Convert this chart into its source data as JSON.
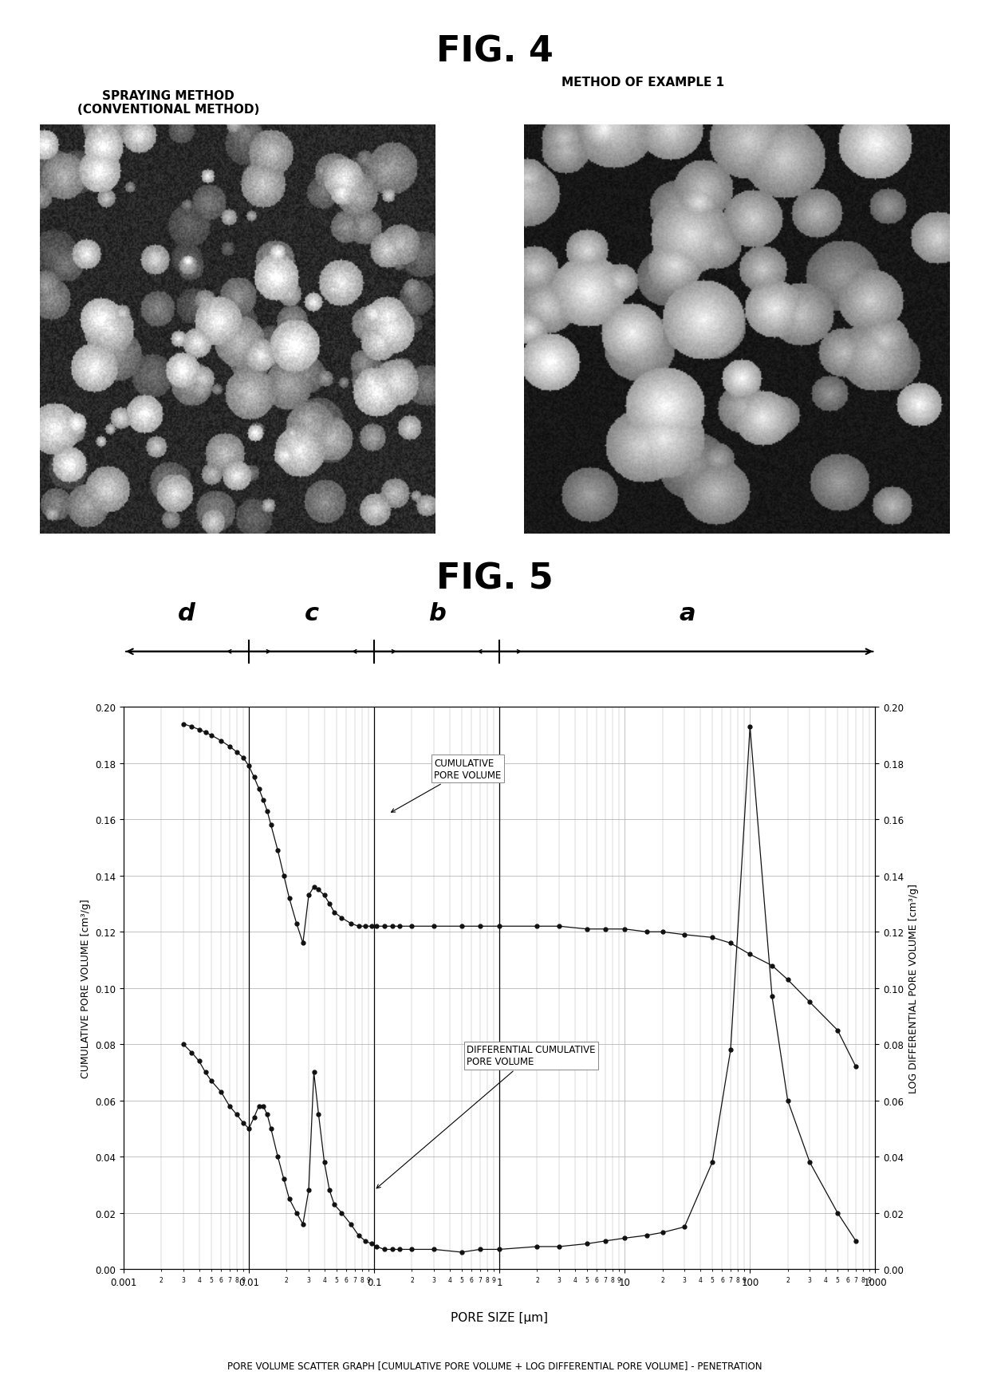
{
  "fig4_title": "FIG. 4",
  "fig5_title": "FIG. 5",
  "label_left": "SPRAYING METHOD\n(CONVENTIONAL METHOD)",
  "label_right": "METHOD OF EXAMPLE 1",
  "xlabel": "PORE SIZE [μm]",
  "ylabel_left": "CUMULATIVE PORE VOLUME [cm³/g]",
  "ylabel_right": "LOG DIFFERENTIAL PORE VOLUME [cm³/g]",
  "bottom_label": "PORE VOLUME SCATTER GRAPH [CUMULATIVE PORE VOLUME + LOG DIFFERENTIAL PORE VOLUME] - PENETRATION",
  "region_labels": [
    "d",
    "c",
    "b",
    "a"
  ],
  "ylim": [
    0.0,
    0.2
  ],
  "yticks": [
    0.0,
    0.02,
    0.04,
    0.06,
    0.08,
    0.1,
    0.12,
    0.14,
    0.16,
    0.18,
    0.2
  ],
  "cumulative_x": [
    0.003,
    0.0035,
    0.004,
    0.0045,
    0.005,
    0.006,
    0.007,
    0.008,
    0.009,
    0.01,
    0.011,
    0.012,
    0.013,
    0.014,
    0.015,
    0.017,
    0.019,
    0.021,
    0.024,
    0.027,
    0.03,
    0.033,
    0.036,
    0.04,
    0.044,
    0.048,
    0.055,
    0.065,
    0.075,
    0.085,
    0.095,
    0.105,
    0.12,
    0.14,
    0.16,
    0.2,
    0.3,
    0.5,
    0.7,
    1.0,
    2.0,
    3.0,
    5.0,
    7.0,
    10.0,
    15.0,
    20.0,
    30.0,
    50.0,
    70.0,
    100.0,
    150.0,
    200.0,
    300.0,
    500.0,
    700.0
  ],
  "cumulative_y": [
    0.194,
    0.193,
    0.192,
    0.191,
    0.19,
    0.188,
    0.186,
    0.184,
    0.182,
    0.179,
    0.175,
    0.171,
    0.167,
    0.163,
    0.158,
    0.149,
    0.14,
    0.132,
    0.123,
    0.116,
    0.133,
    0.136,
    0.135,
    0.133,
    0.13,
    0.127,
    0.125,
    0.123,
    0.122,
    0.122,
    0.122,
    0.122,
    0.122,
    0.122,
    0.122,
    0.122,
    0.122,
    0.122,
    0.122,
    0.122,
    0.122,
    0.122,
    0.121,
    0.121,
    0.121,
    0.12,
    0.12,
    0.119,
    0.118,
    0.116,
    0.112,
    0.108,
    0.103,
    0.095,
    0.085,
    0.072
  ],
  "diff_x": [
    0.003,
    0.0035,
    0.004,
    0.0045,
    0.005,
    0.006,
    0.007,
    0.008,
    0.009,
    0.01,
    0.011,
    0.012,
    0.013,
    0.014,
    0.015,
    0.017,
    0.019,
    0.021,
    0.024,
    0.027,
    0.03,
    0.033,
    0.036,
    0.04,
    0.044,
    0.048,
    0.055,
    0.065,
    0.075,
    0.085,
    0.095,
    0.105,
    0.12,
    0.14,
    0.16,
    0.2,
    0.3,
    0.5,
    0.7,
    1.0,
    2.0,
    3.0,
    5.0,
    7.0,
    10.0,
    15.0,
    20.0,
    30.0,
    50.0,
    70.0,
    100.0,
    150.0,
    200.0,
    300.0,
    500.0,
    700.0
  ],
  "diff_y": [
    0.08,
    0.077,
    0.074,
    0.07,
    0.067,
    0.063,
    0.058,
    0.055,
    0.052,
    0.05,
    0.054,
    0.058,
    0.058,
    0.055,
    0.05,
    0.04,
    0.032,
    0.025,
    0.02,
    0.016,
    0.028,
    0.07,
    0.055,
    0.038,
    0.028,
    0.023,
    0.02,
    0.016,
    0.012,
    0.01,
    0.009,
    0.008,
    0.007,
    0.007,
    0.007,
    0.007,
    0.007,
    0.006,
    0.007,
    0.007,
    0.008,
    0.008,
    0.009,
    0.01,
    0.011,
    0.012,
    0.013,
    0.015,
    0.038,
    0.078,
    0.193,
    0.097,
    0.06,
    0.038,
    0.02,
    0.01
  ],
  "grid_color": "#aaaaaa",
  "dot_color": "#111111"
}
